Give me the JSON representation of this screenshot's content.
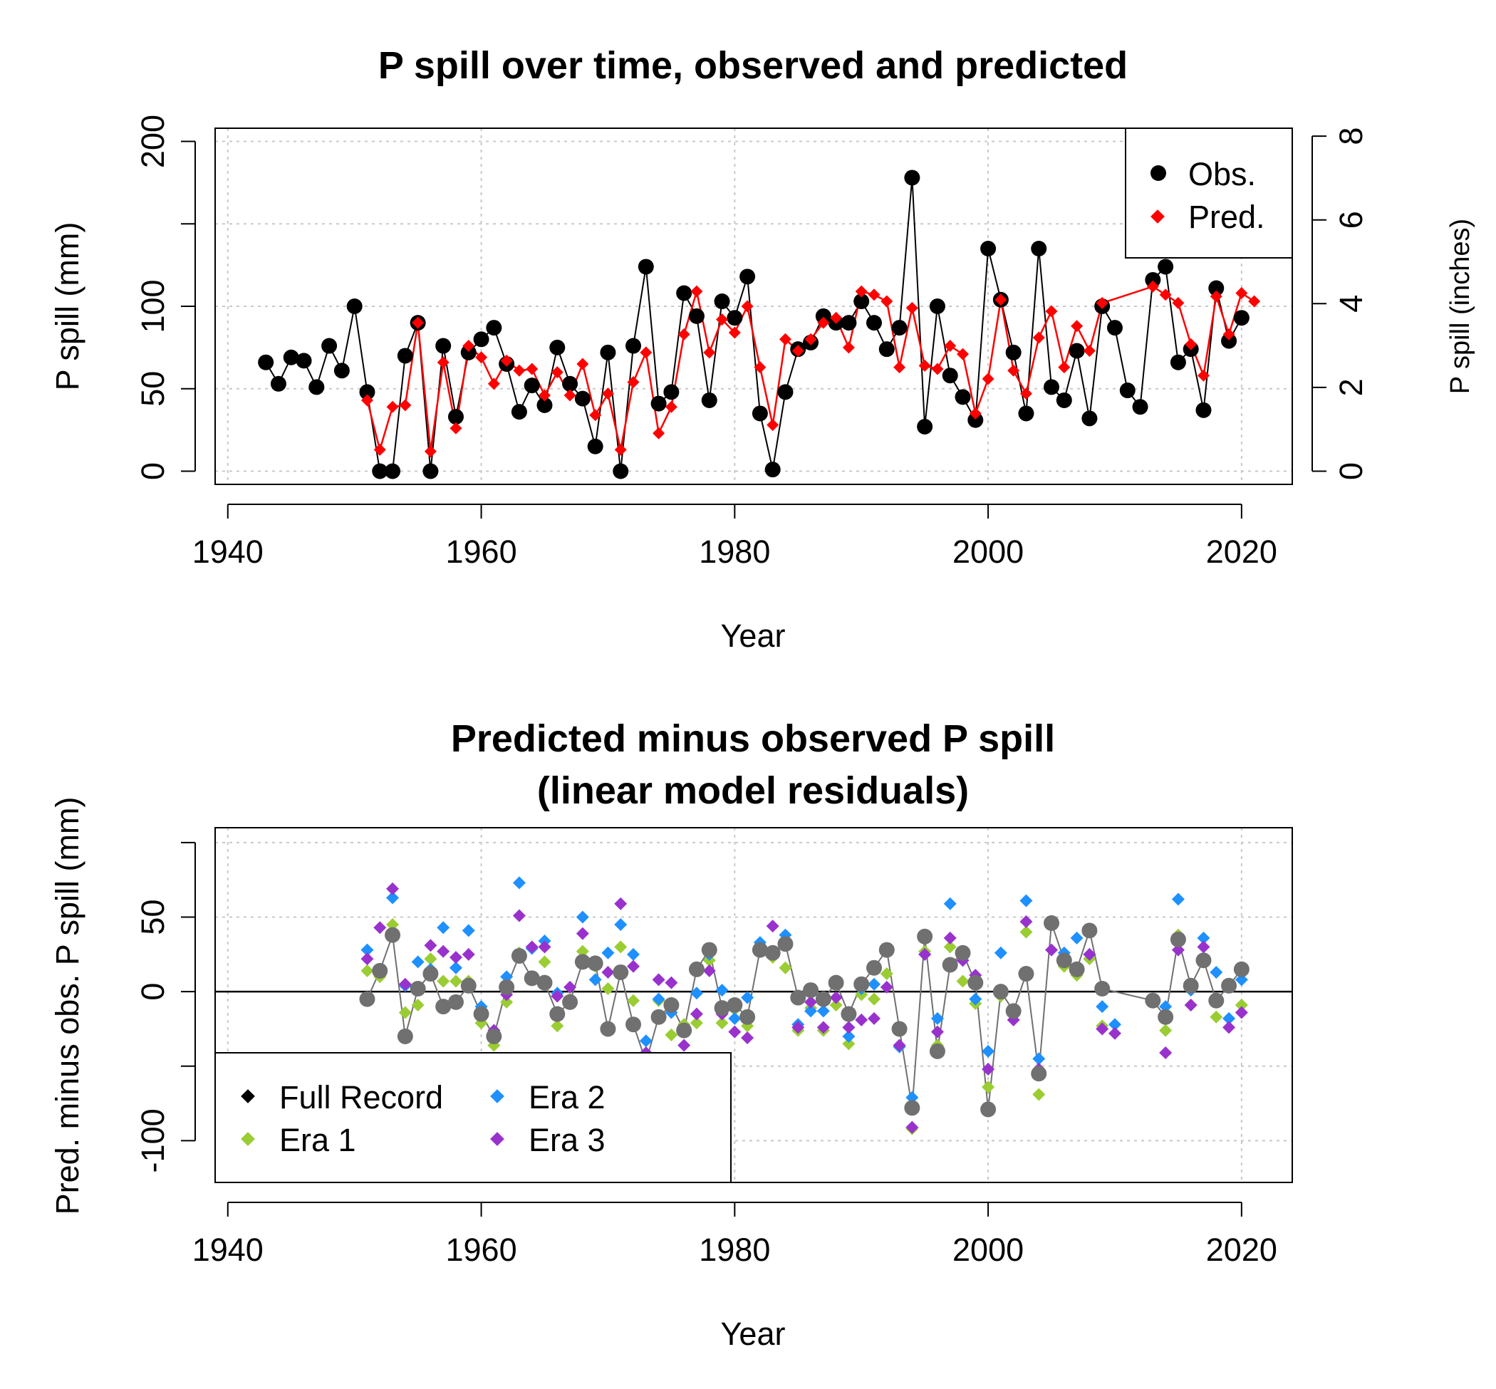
{
  "chart_data": [
    {
      "type": "line",
      "title": "P spill over time, observed and predicted",
      "xlabel": "Year",
      "ylabel": "P spill (mm)",
      "ylabel_right": "P spill (inches)",
      "xlim": [
        1939,
        2024
      ],
      "ylim": [
        -8,
        208
      ],
      "x_ticks": [
        "1940",
        "1960",
        "1980",
        "2000",
        "2020"
      ],
      "y_ticks": [
        "0",
        "50",
        "100",
        "200"
      ],
      "y_ticks_right": [
        "0",
        "2",
        "4",
        "6",
        "8"
      ],
      "grid": true,
      "legend_position": "top-right",
      "colors": {
        "observed": "#000000",
        "predicted": "#ff0000"
      },
      "series": [
        {
          "name": "Obs.",
          "x": [
            1943,
            1944,
            1945,
            1946,
            1947,
            1948,
            1949,
            1950,
            1951,
            1952,
            1953,
            1954,
            1955,
            1956,
            1957,
            1958,
            1959,
            1960,
            1961,
            1962,
            1963,
            1964,
            1965,
            1966,
            1967,
            1968,
            1969,
            1970,
            1971,
            1972,
            1973,
            1974,
            1975,
            1976,
            1977,
            1978,
            1979,
            1980,
            1981,
            1982,
            1983,
            1984,
            1985,
            1986,
            1987,
            1988,
            1989,
            1990,
            1991,
            1992,
            1993,
            1994,
            1995,
            1996,
            1997,
            1998,
            1999,
            2000,
            2001,
            2002,
            2003,
            2004,
            2005,
            2006,
            2007,
            2008,
            2009,
            2010,
            2011,
            2012,
            2013,
            2014,
            2015,
            2016,
            2017,
            2018,
            2019,
            2020
          ],
          "values": [
            66,
            53,
            69,
            67,
            51,
            76,
            61,
            100,
            48,
            0,
            0,
            70,
            90,
            0,
            76,
            33,
            72,
            80,
            87,
            65,
            36,
            52,
            40,
            75,
            53,
            44,
            15,
            72,
            0,
            76,
            124,
            41,
            48,
            108,
            94,
            43,
            103,
            93,
            118,
            35,
            1,
            48,
            74,
            78,
            94,
            90,
            90,
            103,
            90,
            74,
            87,
            178,
            27,
            100,
            58,
            45,
            31,
            135,
            104,
            72,
            35,
            135,
            51,
            43,
            73,
            32,
            100,
            87,
            49,
            39,
            116,
            124,
            66,
            74,
            37,
            111,
            79,
            93
          ]
        },
        {
          "name": "Pred.",
          "x": [
            1951,
            1952,
            1953,
            1954,
            1955,
            1956,
            1957,
            1958,
            1959,
            1960,
            1961,
            1962,
            1963,
            1964,
            1965,
            1966,
            1967,
            1968,
            1969,
            1970,
            1971,
            1972,
            1973,
            1974,
            1975,
            1976,
            1977,
            1978,
            1979,
            1980,
            1981,
            1982,
            1983,
            1984,
            1985,
            1986,
            1987,
            1988,
            1989,
            1990,
            1991,
            1992,
            1993,
            1994,
            1995,
            1996,
            1997,
            1998,
            1999,
            2000,
            2001,
            2002,
            2003,
            2004,
            2005,
            2006,
            2007,
            2008,
            2009,
            2013,
            2014,
            2015,
            2016,
            2017,
            2018,
            2019,
            2020,
            2021
          ],
          "values": [
            43,
            13,
            39,
            40,
            90,
            12,
            66,
            26,
            76,
            69,
            53,
            67,
            61,
            62,
            46,
            60,
            46,
            65,
            34,
            47,
            13,
            54,
            72,
            23,
            39,
            83,
            109,
            72,
            92,
            84,
            100,
            63,
            28,
            80,
            73,
            80,
            90,
            93,
            75,
            109,
            107,
            103,
            63,
            99,
            64,
            62,
            76,
            71,
            35,
            56,
            104,
            61,
            47,
            81,
            97,
            63,
            88,
            73,
            102,
            112,
            107,
            102,
            77,
            58,
            106,
            83,
            108,
            103
          ]
        }
      ]
    },
    {
      "type": "scatter",
      "title": "Predicted minus observed P spill\n(linear model residuals)",
      "xlabel": "Year",
      "ylabel": "Pred. minus obs. P spill (mm)",
      "xlim": [
        1939,
        2024
      ],
      "ylim": [
        -128,
        110
      ],
      "x_ticks": [
        "1940",
        "1960",
        "1980",
        "2000",
        "2020"
      ],
      "y_ticks": [
        "-100",
        "50"
      ],
      "y_ticks_extra": [
        "0"
      ],
      "reference_line": 0,
      "grid": true,
      "legend_position": "bottom-left",
      "colors": {
        "full": "#707070",
        "era1": "#9acd32",
        "era2": "#1e90ff",
        "era3": "#9932cc"
      },
      "series": [
        {
          "name": "Full Record",
          "x": [
            1951,
            1952,
            1953,
            1954,
            1955,
            1956,
            1957,
            1958,
            1959,
            1960,
            1961,
            1962,
            1963,
            1964,
            1965,
            1966,
            1967,
            1968,
            1969,
            1970,
            1971,
            1972,
            1973,
            1974,
            1975,
            1976,
            1977,
            1978,
            1979,
            1980,
            1981,
            1982,
            1983,
            1984,
            1985,
            1986,
            1987,
            1988,
            1989,
            1990,
            1991,
            1992,
            1993,
            1994,
            1995,
            1996,
            1997,
            1998,
            1999,
            2000,
            2001,
            2002,
            2003,
            2004,
            2005,
            2006,
            2007,
            2008,
            2009,
            2013,
            2014,
            2015,
            2016,
            2017,
            2018,
            2019,
            2020
          ],
          "values": [
            -5,
            14,
            38,
            -30,
            2,
            12,
            -10,
            -7,
            4,
            -15,
            -30,
            3,
            24,
            9,
            6,
            -15,
            -7,
            20,
            19,
            -25,
            13,
            -22,
            -47,
            -17,
            -9,
            -26,
            15,
            28,
            -11,
            -9,
            -17,
            28,
            26,
            32,
            -4,
            1,
            -5,
            6,
            -15,
            5,
            16,
            28,
            -25,
            -78,
            37,
            -40,
            18,
            26,
            6,
            -79,
            0,
            -13,
            12,
            -55,
            46,
            21,
            15,
            41,
            2,
            -6,
            -17,
            35,
            4,
            21,
            -6,
            4,
            15
          ]
        },
        {
          "name": "Era 1",
          "x": [
            1951,
            1952,
            1953,
            1954,
            1955,
            1956,
            1957,
            1958,
            1959,
            1960,
            1961,
            1962,
            1963,
            1964,
            1965,
            1966,
            1967,
            1968,
            1969,
            1970,
            1971,
            1972,
            1973,
            1974,
            1975,
            1976,
            1977,
            1978,
            1979,
            1980,
            1981,
            1982,
            1983,
            1984,
            1985,
            1986,
            1987,
            1988,
            1989,
            1990,
            1991,
            1992,
            1993,
            1994,
            1995,
            1996,
            1997,
            1998,
            1999,
            2000,
            2001,
            2002,
            2003,
            2004,
            2005,
            2006,
            2007,
            2008,
            2009,
            2013,
            2014,
            2015,
            2016,
            2017,
            2018,
            2019,
            2020
          ],
          "values": [
            14,
            10,
            45,
            -14,
            -9,
            22,
            7,
            7,
            7,
            -21,
            -36,
            -7,
            26,
            8,
            20,
            -23,
            -5,
            27,
            17,
            2,
            30,
            -6,
            -49,
            -6,
            -29,
            -22,
            -21,
            21,
            -21,
            -12,
            -23,
            27,
            23,
            16,
            -26,
            -11,
            -26,
            -9,
            -35,
            -2,
            -5,
            12,
            -37,
            -92,
            27,
            -36,
            30,
            7,
            -8,
            -64,
            -3,
            -16,
            40,
            -69,
            46,
            17,
            11,
            22,
            -23,
            -5,
            -26,
            38,
            -9,
            22,
            -17,
            3,
            -9
          ]
        },
        {
          "name": "Era 2",
          "x": [
            1951,
            1952,
            1953,
            1954,
            1955,
            1956,
            1957,
            1958,
            1959,
            1960,
            1961,
            1962,
            1963,
            1964,
            1965,
            1966,
            1967,
            1968,
            1969,
            1970,
            1971,
            1972,
            1973,
            1974,
            1975,
            1976,
            1977,
            1978,
            1979,
            1980,
            1981,
            1982,
            1983,
            1984,
            1985,
            1986,
            1987,
            1988,
            1989,
            1990,
            1991,
            1992,
            1993,
            1994,
            1995,
            1996,
            1997,
            1998,
            1999,
            2000,
            2001,
            2002,
            2003,
            2004,
            2005,
            2006,
            2007,
            2008,
            2009,
            2010,
            2014,
            2015,
            2016,
            2017,
            2018,
            2019,
            2020
          ],
          "values": [
            28,
            13,
            63,
            4,
            20,
            15,
            43,
            16,
            41,
            -10,
            -26,
            10,
            73,
            29,
            34,
            -1,
            -6,
            50,
            8,
            26,
            45,
            25,
            -33,
            -5,
            -14,
            -27,
            -1,
            25,
            1,
            -18,
            -4,
            33,
            26,
            38,
            -22,
            -13,
            -13,
            6,
            -30,
            2,
            5,
            27,
            -37,
            -71,
            25,
            -18,
            59,
            21,
            -5,
            -40,
            26,
            -16,
            61,
            -45,
            47,
            26,
            36,
            25,
            -10,
            -22,
            -10,
            62,
            1,
            36,
            13,
            -18,
            8
          ]
        },
        {
          "name": "Era 3",
          "x": [
            1951,
            1952,
            1953,
            1954,
            1955,
            1956,
            1957,
            1958,
            1959,
            1960,
            1961,
            1962,
            1963,
            1964,
            1965,
            1966,
            1967,
            1968,
            1969,
            1970,
            1971,
            1972,
            1973,
            1974,
            1975,
            1976,
            1977,
            1978,
            1979,
            1980,
            1981,
            1982,
            1983,
            1984,
            1985,
            1986,
            1987,
            1988,
            1989,
            1990,
            1991,
            1992,
            1993,
            1994,
            1995,
            1996,
            1997,
            1998,
            1999,
            2000,
            2001,
            2002,
            2003,
            2004,
            2005,
            2006,
            2007,
            2008,
            2009,
            2010,
            2014,
            2015,
            2016,
            2017,
            2018,
            2019,
            2020
          ],
          "values": [
            22,
            43,
            69,
            5,
            2,
            31,
            27,
            23,
            25,
            -14,
            -26,
            -2,
            51,
            30,
            30,
            -3,
            3,
            39,
            20,
            13,
            59,
            17,
            -41,
            8,
            6,
            -36,
            -15,
            14,
            -15,
            -27,
            -31,
            27,
            44,
            31,
            -24,
            -7,
            -24,
            -4,
            -24,
            -19,
            -18,
            3,
            -36,
            -91,
            25,
            -27,
            36,
            21,
            11,
            -52,
            1,
            -19,
            47,
            -52,
            28,
            20,
            14,
            25,
            -25,
            -28,
            -41,
            28,
            -9,
            30,
            -7,
            -24,
            -14
          ]
        }
      ]
    }
  ]
}
